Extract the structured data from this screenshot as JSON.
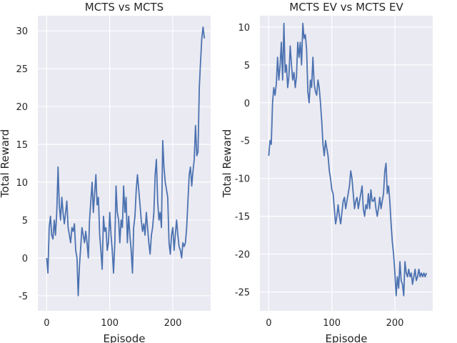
{
  "chart_data": [
    {
      "type": "line",
      "title": "MCTS vs MCTS",
      "xlabel": "Episode",
      "ylabel": "Total Reward",
      "xlim": [
        -14,
        260
      ],
      "ylim": [
        -7,
        32
      ],
      "xticks": [
        0,
        100,
        200
      ],
      "yticks": [
        -5,
        0,
        5,
        10,
        15,
        20,
        25,
        30
      ],
      "grid": true,
      "color": "#4c72b0",
      "series": [
        {
          "x": [
            0,
            2,
            4,
            6,
            8,
            10,
            12,
            14,
            16,
            18,
            20,
            22,
            24,
            26,
            28,
            30,
            32,
            34,
            36,
            38,
            40,
            42,
            44,
            46,
            48,
            50,
            52,
            54,
            56,
            58,
            60,
            62,
            64,
            66,
            68,
            70,
            72,
            74,
            76,
            78,
            80,
            82,
            84,
            86,
            88,
            90,
            92,
            94,
            96,
            98,
            100,
            102,
            104,
            106,
            108,
            110,
            112,
            114,
            116,
            118,
            120,
            122,
            124,
            126,
            128,
            130,
            132,
            134,
            136,
            138,
            140,
            142,
            144,
            146,
            148,
            150,
            152,
            154,
            156,
            158,
            160,
            162,
            164,
            166,
            168,
            170,
            172,
            174,
            176,
            178,
            180,
            182,
            184,
            186,
            188,
            190,
            192,
            194,
            196,
            198,
            200,
            202,
            204,
            206,
            208,
            210,
            212,
            214,
            216,
            218,
            220,
            222,
            224,
            226,
            228,
            230,
            232,
            234,
            236,
            238,
            240,
            242,
            244,
            246,
            248,
            250
          ],
          "y": [
            0,
            -2,
            4,
            5.5,
            3,
            2.5,
            5,
            3,
            6,
            12,
            7,
            5,
            8,
            6,
            4.5,
            6,
            7.5,
            4,
            3,
            2,
            4,
            3.5,
            4.5,
            1,
            0,
            -5,
            -1,
            1.5,
            4,
            3,
            2,
            3.5,
            2,
            0,
            5,
            7.5,
            10,
            6,
            8.5,
            11,
            7,
            8,
            3,
            1,
            -1.5,
            5.5,
            3.5,
            4,
            1,
            2,
            6,
            3,
            1,
            -2,
            2,
            9.5,
            6,
            5,
            2,
            5,
            4,
            9.5,
            6,
            8,
            2,
            5.5,
            3,
            1,
            -2,
            4,
            5.5,
            9,
            11,
            9,
            7,
            5,
            3.5,
            4.5,
            3,
            6,
            4,
            2,
            0.5,
            3,
            4,
            6,
            11,
            13,
            7.5,
            5,
            6,
            4,
            15.5,
            12,
            10,
            9,
            8,
            2,
            0.5,
            3,
            4,
            1,
            3,
            5,
            3,
            1.5,
            1,
            0,
            2,
            1.5,
            2,
            4,
            7.5,
            11,
            12,
            9.5,
            11.5,
            13,
            17.5,
            13.5,
            14,
            22.5,
            26,
            29,
            30.5,
            29
          ]
        }
      ]
    },
    {
      "type": "line",
      "title": "MCTS EV vs MCTS EV",
      "xlabel": "Episode",
      "ylabel": "Total Reward",
      "xlim": [
        -14,
        260
      ],
      "ylim": [
        -27.5,
        11.5
      ],
      "xticks": [
        0,
        100,
        200
      ],
      "yticks": [
        -25,
        -20,
        -15,
        -10,
        -5,
        0,
        5,
        10
      ],
      "grid": true,
      "color": "#4c72b0",
      "series": [
        {
          "x": [
            0,
            2,
            4,
            6,
            8,
            10,
            12,
            14,
            16,
            18,
            20,
            22,
            24,
            26,
            28,
            30,
            32,
            34,
            36,
            38,
            40,
            42,
            44,
            46,
            48,
            50,
            52,
            54,
            56,
            58,
            60,
            62,
            64,
            66,
            68,
            70,
            72,
            74,
            76,
            78,
            80,
            82,
            84,
            86,
            88,
            90,
            92,
            94,
            96,
            98,
            100,
            102,
            104,
            106,
            108,
            110,
            112,
            114,
            116,
            118,
            120,
            122,
            124,
            126,
            128,
            130,
            132,
            134,
            136,
            138,
            140,
            142,
            144,
            146,
            148,
            150,
            152,
            154,
            156,
            158,
            160,
            162,
            164,
            166,
            168,
            170,
            172,
            174,
            176,
            178,
            180,
            182,
            184,
            186,
            188,
            190,
            192,
            194,
            196,
            198,
            200,
            202,
            204,
            206,
            208,
            210,
            212,
            214,
            216,
            218,
            220,
            222,
            224,
            226,
            228,
            230,
            232,
            234,
            236,
            238,
            240,
            242,
            244,
            246,
            248,
            250
          ],
          "y": [
            -7,
            -5,
            -5.5,
            0,
            2,
            1,
            2.5,
            6,
            3,
            5,
            8,
            3,
            10.5,
            4,
            5,
            2,
            3.5,
            7.5,
            5,
            3,
            4,
            2,
            3.5,
            8,
            6,
            8,
            5,
            10.5,
            8.5,
            9,
            7,
            1.5,
            0,
            3,
            2,
            6,
            2.5,
            1.5,
            1,
            3,
            2,
            0,
            -2.5,
            -5.5,
            -7,
            -5,
            -6,
            -7,
            -9,
            -10,
            -11.5,
            -12,
            -14,
            -16,
            -15,
            -13.5,
            -15,
            -16,
            -14.5,
            -13,
            -12.5,
            -14,
            -13,
            -12,
            -11,
            -9,
            -10,
            -12,
            -14,
            -13,
            -12.5,
            -14,
            -13,
            -12,
            -11,
            -14,
            -15,
            -13.5,
            -14,
            -12,
            -14,
            -11.5,
            -13,
            -13,
            -12.5,
            -14,
            -15,
            -14,
            -12.5,
            -14,
            -13,
            -12,
            -9,
            -8,
            -12,
            -11,
            -13,
            -16,
            -18.5,
            -20,
            -22.5,
            -25.5,
            -23,
            -24.5,
            -21,
            -23.5,
            -24,
            -25.5,
            -21,
            -22.5,
            -23,
            -22,
            -23,
            -22.5,
            -24,
            -23,
            -22,
            -23.5,
            -23,
            -22,
            -23,
            -22.5,
            -23,
            -22.5,
            -23,
            -22.5
          ]
        }
      ]
    }
  ]
}
